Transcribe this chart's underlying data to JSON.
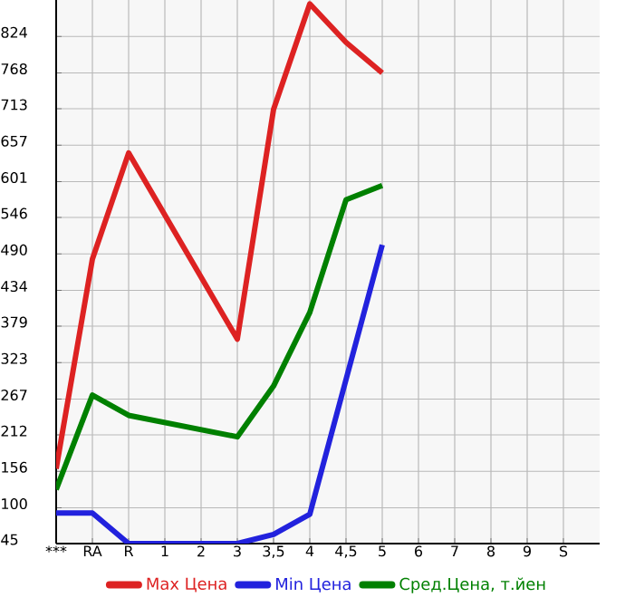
{
  "chart_data": {
    "type": "line",
    "categories": [
      "***",
      "RA",
      "R",
      "1",
      "2",
      "3",
      "3,5",
      "4",
      "4,5",
      "5",
      "6",
      "7",
      "8",
      "9",
      "S"
    ],
    "series": [
      {
        "name": "Max Цена",
        "color": "#dd2222",
        "values": [
          160,
          482,
          645,
          null,
          null,
          359,
          712,
          874,
          815,
          768,
          null,
          null,
          null,
          null,
          null
        ]
      },
      {
        "name": "Min Цена",
        "color": "#2222dd",
        "values": [
          92,
          92,
          45,
          null,
          null,
          45,
          59,
          90,
          null,
          504,
          null,
          null,
          null,
          null,
          null
        ]
      },
      {
        "name": "Сред.Цена, т.йен",
        "color": "#008000",
        "values": [
          128,
          273,
          242,
          null,
          null,
          209,
          287,
          400,
          573,
          595,
          null,
          null,
          null,
          null,
          null
        ]
      }
    ],
    "ylim": [
      45,
      880
    ],
    "yticks": [
      45,
      100,
      156,
      212,
      267,
      323,
      379,
      434,
      490,
      546,
      601,
      657,
      713,
      768,
      824
    ],
    "grid": true,
    "legend": "bottom",
    "marker": "none",
    "line_style": "solid"
  }
}
